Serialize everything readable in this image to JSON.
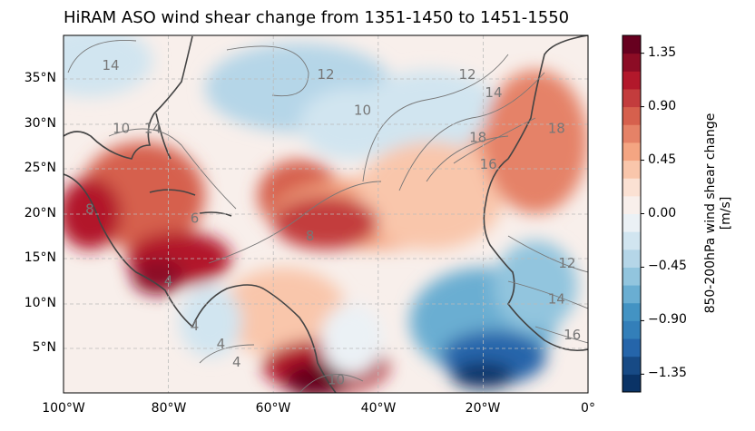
{
  "title": "HiRAM ASO wind shear change from 1351-1450 to 1451-1550",
  "chart_data": {
    "type": "heatmap",
    "title": "HiRAM ASO wind shear change from 1351-1450 to 1451-1550",
    "xlabel": "",
    "ylabel": "",
    "x_ticks": [
      "100°W",
      "80°W",
      "60°W",
      "40°W",
      "20°W",
      "0°"
    ],
    "y_ticks": [
      "5°N",
      "10°N",
      "15°N",
      "20°N",
      "25°N",
      "30°N",
      "35°N"
    ],
    "xlim": [
      -100,
      0
    ],
    "ylim": [
      0,
      40
    ],
    "grid": true,
    "colorbar": {
      "label_line1": "850-200hPa wind shear change",
      "label_line2": "[m/s]",
      "ticks": [
        "1.35",
        "0.90",
        "0.45",
        "0.00",
        "−0.45",
        "−0.90",
        "−1.35"
      ],
      "range": [
        -1.5,
        1.5
      ],
      "step": 0.15,
      "colors": [
        "#0a3366",
        "#174a85",
        "#2565aa",
        "#337fb9",
        "#4393c3",
        "#6aaed2",
        "#92c5de",
        "#b5d6e8",
        "#d1e5f0",
        "#ebf1f5",
        "#f8efeb",
        "#fbe1d3",
        "#f9c6ab",
        "#f4a582",
        "#e58267",
        "#d6604d",
        "#c33c3d",
        "#b2182b",
        "#8c0c25",
        "#67001f"
      ]
    },
    "contour_labels": [
      "14",
      "12",
      "14",
      "10",
      "14",
      "12",
      "10",
      "18",
      "16",
      "18",
      "8",
      "6",
      "8",
      "4",
      "4",
      "4",
      "4",
      "12",
      "14",
      "16",
      "10"
    ]
  }
}
